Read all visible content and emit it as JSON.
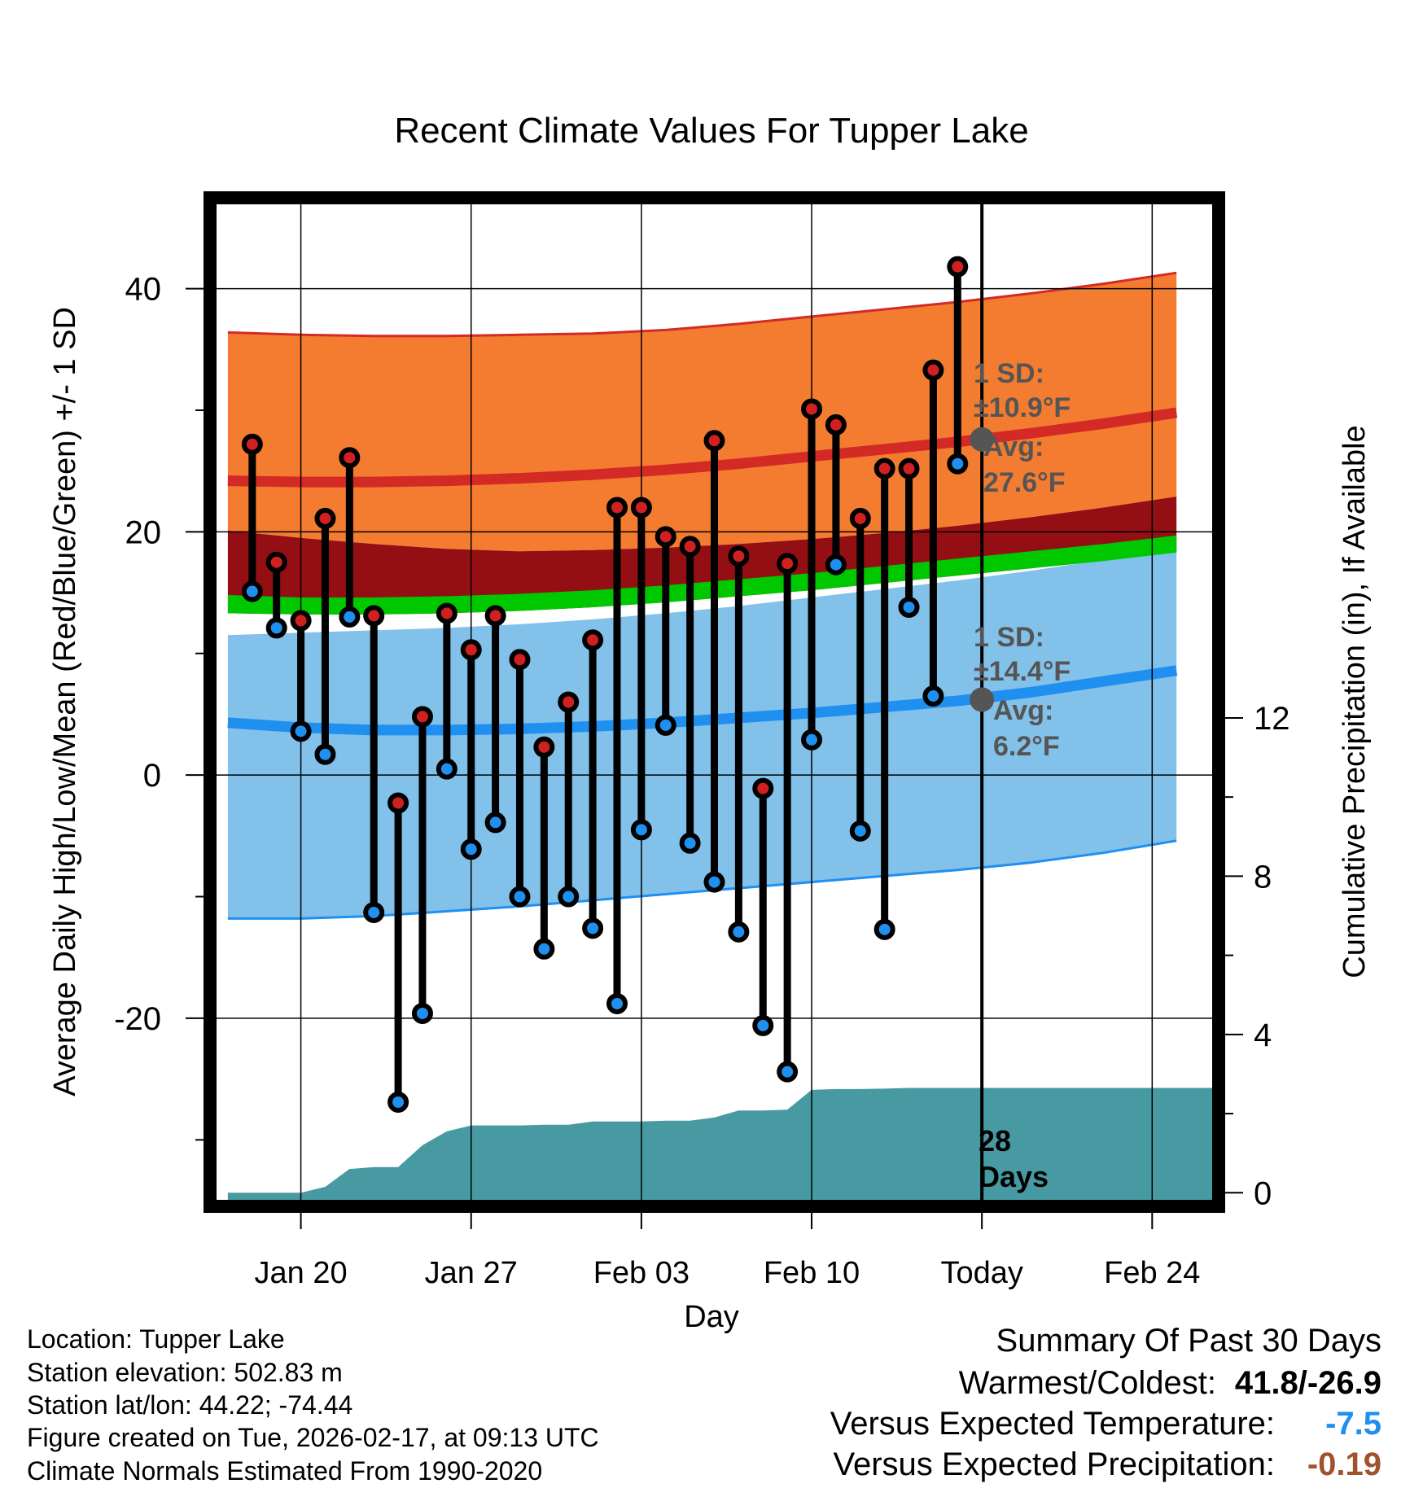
{
  "chart_data": {
    "type": "line",
    "title": "Recent Climate Values For Tupper Lake",
    "xlabel": "Day",
    "ylabel": "Average Daily High/Low/Mean (Red/Blue/Green) +/- 1 SD",
    "y2label": "Cumulative Precipitation (in), If Available",
    "xlim": [
      -3.5,
      37.5
    ],
    "ylim": [
      -35,
      47
    ],
    "y2lim": [
      -0.2,
      25
    ],
    "x_ticks": [
      {
        "x": 0,
        "label": "Jan 20"
      },
      {
        "x": 7,
        "label": "Jan 27"
      },
      {
        "x": 14,
        "label": "Feb 03"
      },
      {
        "x": 21,
        "label": "Feb 10"
      },
      {
        "x": 28,
        "label": "Today"
      },
      {
        "x": 35,
        "label": "Feb 24"
      }
    ],
    "y_ticks": [
      40,
      20,
      0,
      -20
    ],
    "y_ticks_labels": [
      "40",
      "20",
      "0",
      "-20"
    ],
    "y2_ticks": [
      12,
      8,
      4,
      0
    ],
    "y2_ticks_labels": [
      "12",
      "8",
      "4",
      "0"
    ],
    "today_x": 28,
    "normal_days": [
      -3,
      0,
      3,
      6,
      9,
      12,
      15,
      18,
      21,
      24,
      27,
      30,
      33,
      36
    ],
    "high_normal": {
      "avg": [
        24.2,
        24.1,
        24.1,
        24.2,
        24.4,
        24.7,
        25.1,
        25.6,
        26.2,
        26.8,
        27.4,
        28.1,
        28.9,
        29.8
      ],
      "upper": [
        36.4,
        36.2,
        36.1,
        36.1,
        36.2,
        36.3,
        36.6,
        37.1,
        37.7,
        38.3,
        38.9,
        39.6,
        40.4,
        41.3
      ],
      "lower": [
        20.1,
        19.5,
        19.0,
        18.6,
        18.4,
        18.5,
        18.7,
        19.0,
        19.4,
        19.9,
        20.5,
        21.2,
        22.0,
        22.9
      ]
    },
    "mean_normal": {
      "upper": [
        14.8,
        14.6,
        14.6,
        14.7,
        14.9,
        15.2,
        15.6,
        16.1,
        16.6,
        17.2,
        17.8,
        18.4,
        19.0,
        19.7
      ],
      "lower": [
        13.3,
        13.2,
        13.2,
        13.3,
        13.5,
        13.8,
        14.2,
        14.7,
        15.2,
        15.8,
        16.4,
        17.0,
        17.6,
        18.3
      ]
    },
    "low_normal": {
      "avg": [
        4.3,
        3.9,
        3.7,
        3.7,
        3.8,
        4.0,
        4.3,
        4.7,
        5.1,
        5.6,
        6.1,
        6.8,
        7.7,
        8.6
      ],
      "upper": [
        11.5,
        11.7,
        11.9,
        12.1,
        12.4,
        12.8,
        13.3,
        13.9,
        14.6,
        15.3,
        16.0,
        16.8,
        17.7,
        18.7
      ],
      "lower": [
        -11.8,
        -11.8,
        -11.6,
        -11.2,
        -10.8,
        -10.3,
        -9.8,
        -9.3,
        -8.8,
        -8.3,
        -7.8,
        -7.2,
        -6.4,
        -5.4
      ]
    },
    "series": [
      {
        "name": "High",
        "color": "#d02020",
        "x": [
          -2,
          -1,
          0,
          1,
          2,
          3,
          4,
          5,
          6,
          7,
          8,
          9,
          10,
          11,
          12,
          13,
          14,
          15,
          16,
          17,
          18,
          19,
          20,
          21,
          22,
          23,
          24,
          25,
          26,
          27
        ],
        "values": [
          27.2,
          17.5,
          12.7,
          21.1,
          26.1,
          13.1,
          -2.3,
          4.8,
          13.3,
          10.3,
          13.1,
          9.5,
          2.3,
          6.0,
          11.1,
          22.0,
          22.0,
          19.6,
          18.8,
          27.5,
          18.0,
          -1.1,
          17.4,
          30.1,
          28.8,
          21.1,
          25.2,
          25.2,
          33.3,
          41.8
        ]
      },
      {
        "name": "Low",
        "color": "#2090f0",
        "x": [
          -2,
          -1,
          0,
          1,
          2,
          3,
          4,
          5,
          6,
          7,
          8,
          9,
          10,
          11,
          12,
          13,
          14,
          15,
          16,
          17,
          18,
          19,
          20,
          21,
          22,
          23,
          24,
          25,
          26,
          27
        ],
        "values": [
          15.1,
          12.1,
          3.6,
          1.7,
          13.0,
          -11.3,
          -26.9,
          -19.6,
          0.5,
          -6.1,
          -3.9,
          -10.0,
          -14.3,
          -10.0,
          -12.6,
          -18.8,
          -4.5,
          4.1,
          -5.6,
          -8.8,
          -12.9,
          -20.6,
          -24.4,
          2.9,
          17.3,
          -4.6,
          -12.7,
          13.8,
          6.5,
          25.6
        ]
      }
    ],
    "precip": {
      "name": "Cumulative Precipitation",
      "x": [
        -3,
        -1,
        0,
        1,
        2,
        3,
        4,
        5,
        6,
        7,
        8,
        9,
        10,
        11,
        12,
        13,
        14,
        15,
        16,
        17,
        18,
        19,
        20,
        21,
        22,
        23,
        24,
        25,
        26,
        27,
        28,
        37.5
      ],
      "values": [
        0,
        0,
        0,
        0.15,
        0.6,
        0.65,
        0.65,
        1.2,
        1.55,
        1.7,
        1.7,
        1.7,
        1.72,
        1.72,
        1.8,
        1.8,
        1.8,
        1.82,
        1.82,
        1.9,
        2.08,
        2.08,
        2.1,
        2.6,
        2.62,
        2.62,
        2.63,
        2.65,
        2.65,
        2.65,
        2.65,
        2.65
      ]
    },
    "annotations": {
      "high_sd_label": "1 SD:",
      "high_sd_value": "±10.9°F",
      "high_avg_label": "Avg:",
      "high_avg_value": "27.6°F",
      "high_avg_y": 27.6,
      "low_sd_label": "1 SD:",
      "low_sd_value": "±14.4°F",
      "low_avg_label": "Avg:",
      "low_avg_value": "6.2°F",
      "low_avg_y": 6.2,
      "days_count": "28",
      "days_label": "Days"
    },
    "colors": {
      "high_band": "#f47c30",
      "high_line": "#d42a26",
      "mean_band_dark": "#930f14",
      "mean_band_green": "#00c800",
      "low_band": "#82c1ea",
      "low_line": "#1f8ff0",
      "low_edge": "#1f8ff0",
      "precip_fill": "#479aa2",
      "annotation_text": "#555555",
      "marker_today": "#555555"
    }
  },
  "info": {
    "location": "Location: Tupper Lake",
    "elevation": "Station elevation: 502.83 m",
    "latlon": "Station lat/lon: 44.22; -74.44",
    "created": "Figure created on Tue, 2026-02-17, at 09:13 UTC",
    "normals": "Climate Normals Estimated From 1990-2020"
  },
  "summary": {
    "title": "Summary Of Past 30 Days",
    "warmest_label": "Warmest/Coldest:",
    "warmest_value": "41.8/-26.9",
    "temp_label": "Versus Expected Temperature:",
    "temp_value": "-7.5",
    "temp_color": "#1f8ff0",
    "precip_label": "Versus Expected Precipitation:",
    "precip_value": "-0.19",
    "precip_color": "#a0522d"
  }
}
